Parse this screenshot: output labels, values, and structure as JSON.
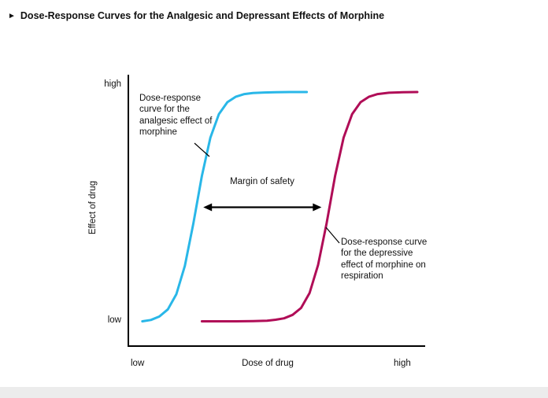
{
  "title": {
    "bullet": "►",
    "text": "Dose-Response Curves for the Analgesic and Depressant Effects of Morphine"
  },
  "chart_data": {
    "type": "line",
    "title": "Dose-Response Curves for the Analgesic and Depressant Effects of Morphine",
    "xlabel": "Dose of drug",
    "ylabel": "Effect of drug",
    "x_tick_labels": {
      "low": "low",
      "high": "high"
    },
    "y_tick_labels": {
      "low": "low",
      "high": "high"
    },
    "xlim": [
      0,
      10
    ],
    "ylim": [
      0,
      1
    ],
    "grid": false,
    "legend_position": "none",
    "axis_color": "#000000",
    "series": [
      {
        "name": "Dose-response curve for the analgesic effect of morphine",
        "color": "#29b7e8",
        "x": [
          0.3,
          0.6,
          0.9,
          1.2,
          1.5,
          1.8,
          2.1,
          2.4,
          2.7,
          3.0,
          3.3,
          3.6,
          3.9,
          4.2,
          4.6,
          5.0,
          5.5,
          6.1
        ],
        "y": [
          0.005,
          0.011,
          0.026,
          0.057,
          0.123,
          0.246,
          0.43,
          0.636,
          0.802,
          0.904,
          0.956,
          0.98,
          0.991,
          0.996,
          0.998,
          0.999,
          1.0,
          1.0
        ]
      },
      {
        "name": "Dose-response curve for the depressive effect of morphine on respiration",
        "color": "#b00d57",
        "x": [
          2.4,
          3.0,
          3.6,
          4.2,
          4.7,
          5.0,
          5.3,
          5.6,
          5.9,
          6.2,
          6.5,
          6.8,
          7.1,
          7.4,
          7.7,
          8.0,
          8.3,
          8.6,
          9.0,
          9.5,
          10.0
        ],
        "y": [
          0.005,
          0.005,
          0.005,
          0.006,
          0.008,
          0.012,
          0.018,
          0.033,
          0.063,
          0.128,
          0.25,
          0.43,
          0.636,
          0.802,
          0.904,
          0.956,
          0.98,
          0.991,
          0.997,
          0.999,
          1.0
        ]
      }
    ],
    "annotations": {
      "analgesic_label": "Dose-response curve for the analgesic effect of morphine",
      "margin_of_safety": {
        "label": "Margin of safety",
        "x1": 2.45,
        "x2": 6.62,
        "y": 0.5
      },
      "depressive_label": "Dose-response curve for the depressive effect of morphine on respiration"
    }
  }
}
